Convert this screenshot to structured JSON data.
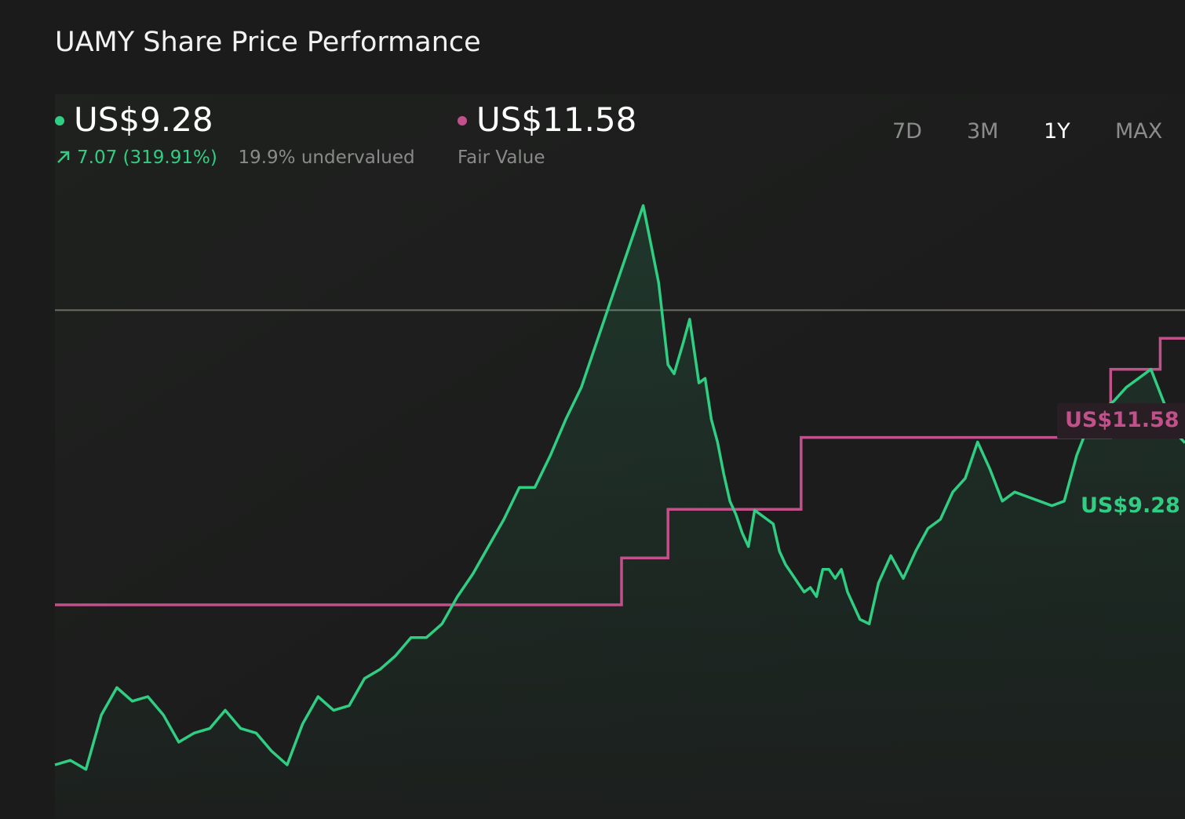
{
  "title": "UAMY Share Price Performance",
  "legend": {
    "price": {
      "value": "US$9.28",
      "change": "7.07 (319.91%)",
      "valuation": "19.9% undervalued",
      "color": "#2fce82"
    },
    "fair_value": {
      "value": "US$11.58",
      "label": "Fair Value",
      "color": "#c2508a"
    }
  },
  "tabs": [
    {
      "label": "7D",
      "active": false
    },
    {
      "label": "3M",
      "active": false
    },
    {
      "label": "1Y",
      "active": true
    },
    {
      "label": "MAX",
      "active": false
    }
  ],
  "badges": {
    "fair_value": "US$11.58",
    "price": "US$9.28"
  },
  "colors": {
    "background": "#1b1b1b",
    "price_line": "#2fce82",
    "fair_value_line": "#c2508a",
    "reference_line": "#6f6c62"
  },
  "chart_data": {
    "type": "line",
    "title": "UAMY Share Price Performance",
    "xlabel": "",
    "ylabel": "",
    "xlim": [
      0,
      365
    ],
    "ylim": [
      0.5,
      15
    ],
    "grid": false,
    "reference_line": 12.2,
    "series": [
      {
        "name": "US$9.28",
        "x": [
          0,
          5,
          10,
          15,
          20,
          25,
          30,
          35,
          40,
          45,
          50,
          55,
          60,
          65,
          70,
          75,
          80,
          85,
          90,
          95,
          100,
          105,
          110,
          115,
          120,
          125,
          130,
          135,
          140,
          145,
          150,
          155,
          160,
          165,
          170,
          175,
          180,
          185,
          190,
          195,
          198,
          200,
          203,
          205,
          208,
          210,
          212,
          214,
          216,
          218,
          220,
          222,
          224,
          226,
          228,
          230,
          232,
          234,
          236,
          238,
          240,
          242,
          244,
          246,
          248,
          250,
          252,
          254,
          256,
          258,
          260,
          263,
          266,
          270,
          274,
          278,
          282,
          286,
          290,
          294,
          298,
          302,
          306,
          310,
          314,
          318,
          322,
          326,
          330,
          334,
          338,
          342,
          346,
          350,
          354,
          358,
          362,
          365
        ],
        "y": [
          2.2,
          2.3,
          2.1,
          3.3,
          3.9,
          3.6,
          3.7,
          3.3,
          2.7,
          2.9,
          3.0,
          3.4,
          3.0,
          2.9,
          2.5,
          2.2,
          3.1,
          3.7,
          3.4,
          3.5,
          4.1,
          4.3,
          4.6,
          5.0,
          5.0,
          5.3,
          5.9,
          6.4,
          7.0,
          7.6,
          8.3,
          8.3,
          9.0,
          9.8,
          10.5,
          11.5,
          12.5,
          13.5,
          14.5,
          12.8,
          11.0,
          10.8,
          11.5,
          12.0,
          10.6,
          10.7,
          9.8,
          9.3,
          8.6,
          8.0,
          7.7,
          7.3,
          7.0,
          7.8,
          7.7,
          7.6,
          7.5,
          6.9,
          6.6,
          6.4,
          6.2,
          6.0,
          6.1,
          5.9,
          6.5,
          6.5,
          6.3,
          6.5,
          6.0,
          5.7,
          5.4,
          5.3,
          6.2,
          6.8,
          6.3,
          6.9,
          7.4,
          7.6,
          8.2,
          8.5,
          9.3,
          8.7,
          8.0,
          8.2,
          8.1,
          8.0,
          7.9,
          8.0,
          9.0,
          9.7,
          10.0,
          10.2,
          10.5,
          10.7,
          10.9,
          10.2,
          9.5,
          9.28
        ]
      },
      {
        "name": "Fair Value",
        "x": [
          0,
          37,
          48,
          183,
          183,
          198,
          198,
          241,
          241,
          341,
          341,
          357,
          357,
          365
        ],
        "y": [
          5.72,
          5.72,
          5.72,
          5.72,
          6.75,
          6.75,
          7.82,
          7.82,
          9.4,
          9.4,
          10.9,
          10.9,
          11.58,
          11.58
        ]
      }
    ]
  }
}
